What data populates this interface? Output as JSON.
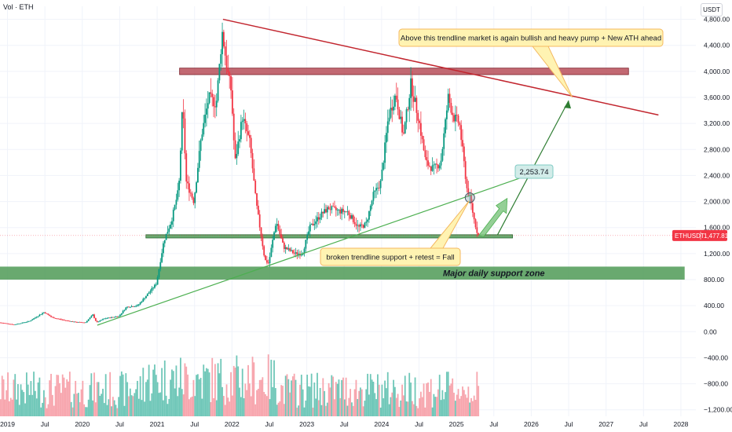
{
  "header": {
    "vol_label": "Vol · ETH",
    "unit_label": "USDT"
  },
  "colors": {
    "up": "#089981",
    "down": "#f23645",
    "vol_up": "#6fc7b8",
    "vol_down": "#f7a5ad",
    "resistance_band": "#b4444f",
    "support_band": "#4f9a56",
    "trend_red": "#c2262f",
    "trend_green": "#4caf50",
    "price_line": "#f23645",
    "note_fill": "#fff3b2",
    "note_border": "#f4b860",
    "target_fill": "#d2ece9"
  },
  "chart_data": {
    "type": "candlestick",
    "symbol": "ETHUSDT",
    "last_price": 1477.81,
    "last_price_label": "1,477.81",
    "target_label": "2,253.74",
    "yaxis": {
      "ticks": [
        -1200,
        -800,
        -400,
        0,
        400,
        800,
        1200,
        1600,
        2000,
        2400,
        2800,
        3200,
        3600,
        4000,
        4400,
        4800
      ],
      "tick_labels": [
        "−1,200.00",
        "−800.00",
        "−400.00",
        "0.00",
        "400.00",
        "800.00",
        "1,200.00",
        "1,600.00",
        "2,000.00",
        "2,400.00",
        "2,800.00",
        "3,200.00",
        "3,600.00",
        "4,000.00",
        "4,400.00",
        "4,800.00"
      ],
      "range": [
        -1300,
        5000
      ]
    },
    "xaxis": {
      "ticks": [
        2019.0,
        2019.5,
        2020.0,
        2020.5,
        2021.0,
        2021.5,
        2022.0,
        2022.5,
        2023.0,
        2023.5,
        2024.0,
        2024.5,
        2025.0,
        2025.5,
        2026.0,
        2026.5,
        2027.0,
        2027.5,
        2028.0
      ],
      "tick_labels": [
        "2019",
        "Jul",
        "2020",
        "Jul",
        "2021",
        "Jul",
        "2022",
        "Jul",
        "2023",
        "Jul",
        "2024",
        "Jul",
        "2025",
        "Jul",
        "2026",
        "Jul",
        "2027",
        "Jul",
        "2028"
      ],
      "range": [
        2018.9,
        2028.2
      ]
    },
    "price_anchors": [
      [
        2018.9,
        140
      ],
      [
        2019.1,
        110
      ],
      [
        2019.3,
        160
      ],
      [
        2019.5,
        300
      ],
      [
        2019.6,
        220
      ],
      [
        2019.75,
        180
      ],
      [
        2019.9,
        150
      ],
      [
        2020.05,
        140
      ],
      [
        2020.15,
        260
      ],
      [
        2020.2,
        140
      ],
      [
        2020.3,
        200
      ],
      [
        2020.5,
        240
      ],
      [
        2020.6,
        380
      ],
      [
        2020.75,
        400
      ],
      [
        2020.9,
        600
      ],
      [
        2021.0,
        740
      ],
      [
        2021.1,
        1400
      ],
      [
        2021.2,
        1700
      ],
      [
        2021.3,
        2200
      ],
      [
        2021.35,
        3500
      ],
      [
        2021.4,
        2300
      ],
      [
        2021.5,
        2000
      ],
      [
        2021.6,
        3000
      ],
      [
        2021.7,
        3600
      ],
      [
        2021.8,
        3500
      ],
      [
        2021.88,
        4600
      ],
      [
        2021.95,
        4000
      ],
      [
        2022.0,
        3700
      ],
      [
        2022.05,
        2600
      ],
      [
        2022.15,
        3300
      ],
      [
        2022.25,
        2900
      ],
      [
        2022.33,
        2000
      ],
      [
        2022.45,
        1100
      ],
      [
        2022.5,
        1050
      ],
      [
        2022.6,
        1700
      ],
      [
        2022.7,
        1300
      ],
      [
        2022.85,
        1200
      ],
      [
        2022.95,
        1200
      ],
      [
        2023.05,
        1600
      ],
      [
        2023.2,
        1800
      ],
      [
        2023.3,
        1900
      ],
      [
        2023.45,
        1850
      ],
      [
        2023.55,
        1850
      ],
      [
        2023.7,
        1600
      ],
      [
        2023.8,
        1650
      ],
      [
        2023.9,
        2100
      ],
      [
        2024.0,
        2300
      ],
      [
        2024.1,
        3300
      ],
      [
        2024.2,
        3650
      ],
      [
        2024.3,
        3000
      ],
      [
        2024.4,
        3800
      ],
      [
        2024.5,
        3300
      ],
      [
        2024.6,
        2600
      ],
      [
        2024.7,
        2500
      ],
      [
        2024.8,
        2600
      ],
      [
        2024.9,
        3600
      ],
      [
        2024.97,
        3300
      ],
      [
        2025.05,
        3200
      ],
      [
        2025.15,
        2200
      ],
      [
        2025.2,
        2000
      ],
      [
        2025.25,
        1700
      ],
      [
        2025.3,
        1478
      ]
    ],
    "resistance_zone": [
      3950,
      4050
    ],
    "support_zone": [
      1440,
      1490
    ],
    "major_support_zone": [
      800,
      1000
    ],
    "descending_trendline": [
      [
        2021.88,
        4800
      ],
      [
        2027.7,
        3330
      ]
    ],
    "ascending_trendline": [
      [
        2020.2,
        100
      ],
      [
        2025.95,
        2400
      ]
    ],
    "projection_arrow": [
      [
        2025.55,
        1490
      ],
      [
        2026.5,
        3550
      ]
    ]
  },
  "annotations": {
    "bullish_note": "Above this trendline market is again bullish and heavy pump + New ATH ahead",
    "fall_note": "broken trendline support + retest = Fall",
    "major_support_label": "Major daily support zone"
  }
}
